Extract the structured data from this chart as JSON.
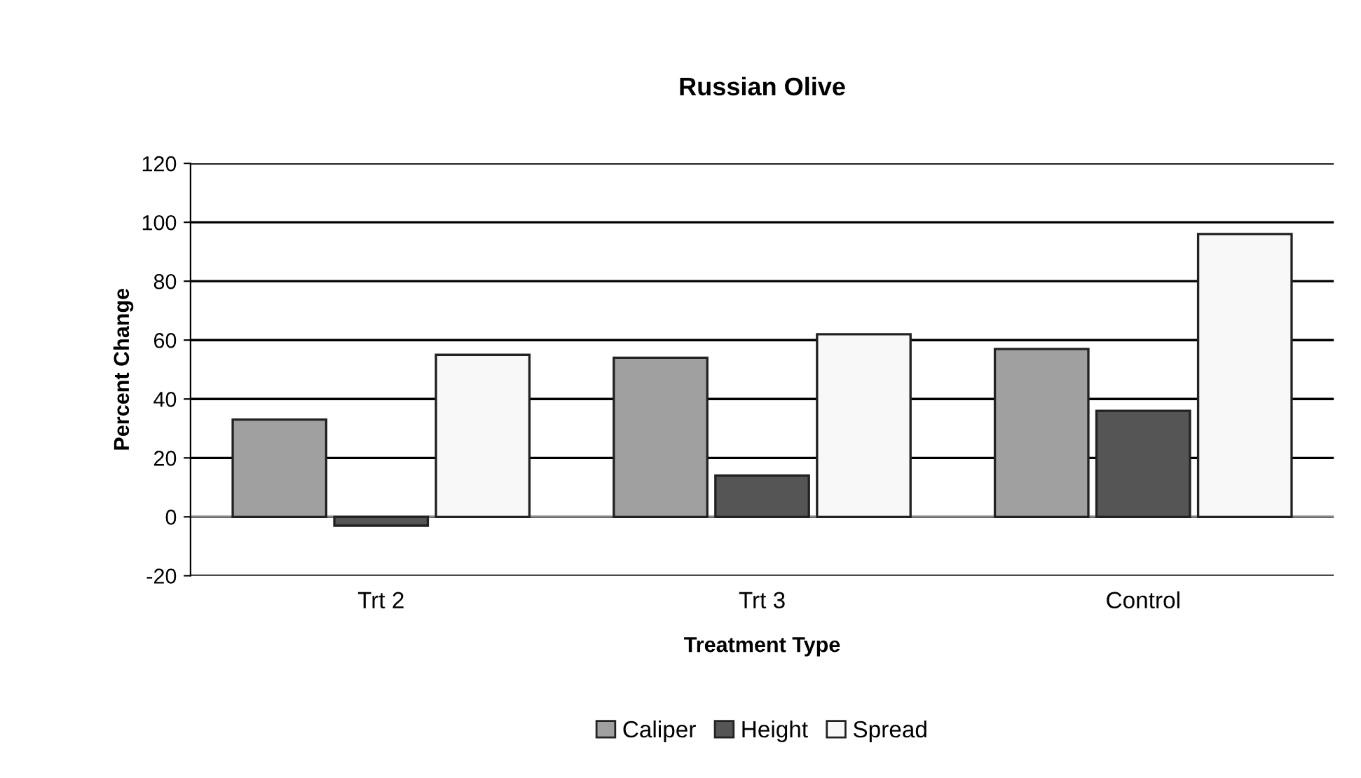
{
  "chart_data": {
    "type": "bar",
    "title": "Russian Olive",
    "xlabel": "Treatment Type",
    "ylabel": "Percent Change",
    "categories": [
      "Trt 2",
      "Trt 3",
      "Control"
    ],
    "series": [
      {
        "name": "Caliper",
        "color": "#a0a0a0",
        "values": [
          33,
          54,
          57
        ]
      },
      {
        "name": "Height",
        "color": "#555555",
        "values": [
          -3,
          14,
          36
        ]
      },
      {
        "name": "Spread",
        "color": "#f8f8f8",
        "values": [
          55,
          62,
          96
        ]
      }
    ],
    "ylim": [
      -20,
      120
    ],
    "yticks": [
      -20,
      0,
      20,
      40,
      60,
      80,
      100,
      120
    ],
    "grid": "y",
    "legend": "bottom"
  }
}
